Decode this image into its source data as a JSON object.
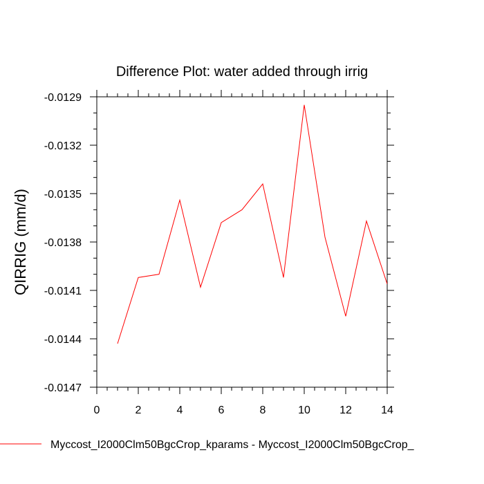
{
  "chart_data": {
    "type": "line",
    "title": "Difference Plot: water added through irrig",
    "xlabel": "",
    "ylabel": "QIRRIG  (mm/d)",
    "xlim": [
      0,
      14
    ],
    "ylim": [
      -0.0147,
      -0.0129
    ],
    "x_ticks": [
      0,
      2,
      4,
      6,
      8,
      10,
      12,
      14
    ],
    "x_tick_labels": [
      "0",
      "2",
      "4",
      "6",
      "8",
      "10",
      "12",
      "14"
    ],
    "y_ticks": [
      -0.0129,
      -0.0132,
      -0.0135,
      -0.0138,
      -0.0141,
      -0.0144,
      -0.0147
    ],
    "y_tick_labels": [
      "-0.0129",
      "-0.0132",
      "-0.0135",
      "-0.0138",
      "-0.0141",
      "-0.0144",
      "-0.0147"
    ],
    "series": [
      {
        "name": "Myccost_I2000Clm50BgcCrop_kparams - Myccost_I2000Clm50BgcCrop_",
        "color": "#ff0000",
        "x": [
          1,
          2,
          3,
          4,
          5,
          6,
          7,
          8,
          9,
          10,
          11,
          12,
          13,
          14
        ],
        "values": [
          -0.01443,
          -0.01402,
          -0.014,
          -0.01354,
          -0.01408,
          -0.01368,
          -0.0136,
          -0.01344,
          -0.01402,
          -0.01295,
          -0.01377,
          -0.01426,
          -0.01367,
          -0.01406
        ]
      }
    ],
    "legend": {
      "placement": "bottom",
      "entries": [
        "Myccost_I2000Clm50BgcCrop_kparams - Myccost_I2000Clm50BgcCrop_"
      ]
    },
    "grid": false
  }
}
